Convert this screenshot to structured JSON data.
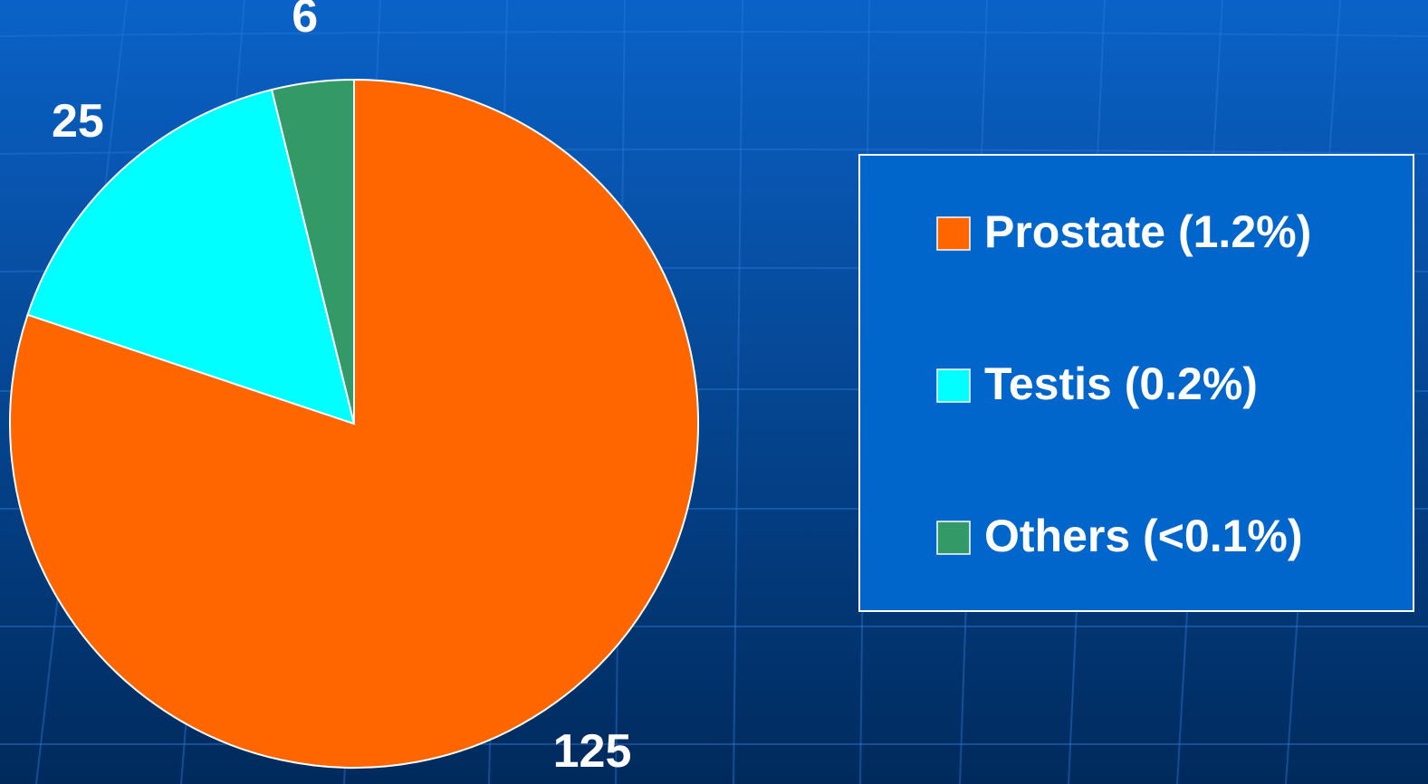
{
  "chart_data": {
    "type": "pie",
    "categories": [
      "Prostate (1.2%)",
      "Testis (0.2%)",
      "Others (<0.1%)"
    ],
    "values": [
      125,
      25,
      6
    ],
    "colors": [
      "#ff6600",
      "#00ffff",
      "#339966"
    ]
  }
}
